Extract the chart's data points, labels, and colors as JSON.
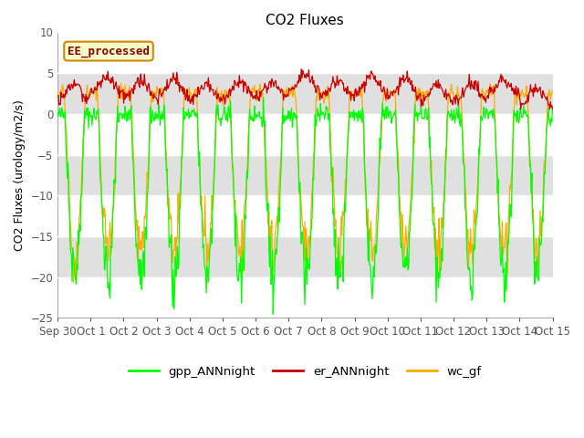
{
  "title": "CO2 Fluxes",
  "ylabel": "CO2 Fluxes (urology/m2/s)",
  "ylim": [
    -25,
    10
  ],
  "yticks": [
    -25,
    -20,
    -15,
    -10,
    -5,
    0,
    5,
    10
  ],
  "background_color": "#ffffff",
  "plot_bg_color": "#e0e0e0",
  "grid_color": "#ffffff",
  "annotation_text": "EE_processed",
  "annotation_bg": "#ffffcc",
  "annotation_edge": "#cc8800",
  "line_colors": {
    "gpp": "#00ff00",
    "er": "#cc0000",
    "wc": "#ffaa00"
  },
  "legend_labels": [
    "gpp_ANNnight",
    "er_ANNnight",
    "wc_gf"
  ],
  "n_days": 15,
  "n_ppd": 48,
  "seed": 42
}
